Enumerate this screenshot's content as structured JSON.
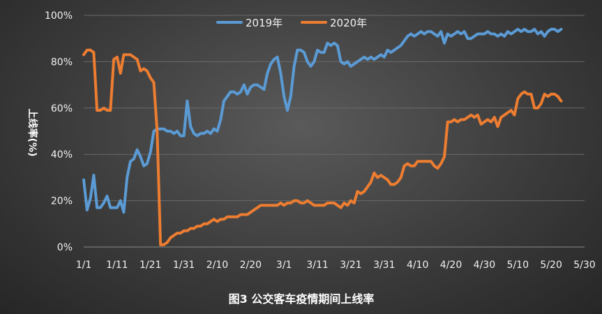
{
  "chart_data": {
    "type": "line",
    "caption": "图3  公交客车疫情期间上线率",
    "ylabel": "上线率(%)",
    "xlabel": "",
    "x_ticks": [
      "1/1",
      "1/11",
      "1/21",
      "1/31",
      "2/10",
      "2/20",
      "3/1",
      "3/11",
      "3/21",
      "3/31",
      "4/10",
      "4/20",
      "4/30",
      "5/10",
      "5/20",
      "5/30"
    ],
    "y_ticks": [
      "0%",
      "20%",
      "40%",
      "60%",
      "80%",
      "100%"
    ],
    "ylim": [
      0,
      100
    ],
    "x_range_days": [
      0,
      150
    ],
    "grid": "horizontal",
    "legend_position": "top",
    "series": [
      {
        "name": "2019年",
        "color": "#5b9bd5",
        "points": [
          [
            0,
            29
          ],
          [
            1,
            16
          ],
          [
            2,
            21
          ],
          [
            3,
            31
          ],
          [
            4,
            17
          ],
          [
            5,
            17
          ],
          [
            6,
            19
          ],
          [
            7,
            22
          ],
          [
            8,
            17
          ],
          [
            9,
            17
          ],
          [
            10,
            17
          ],
          [
            11,
            20
          ],
          [
            12,
            15
          ],
          [
            13,
            30
          ],
          [
            14,
            37
          ],
          [
            15,
            38
          ],
          [
            16,
            42
          ],
          [
            17,
            39
          ],
          [
            18,
            35
          ],
          [
            19,
            36
          ],
          [
            20,
            41
          ],
          [
            21,
            50
          ],
          [
            22,
            51
          ],
          [
            23,
            51
          ],
          [
            24,
            51
          ],
          [
            25,
            50
          ],
          [
            26,
            50
          ],
          [
            27,
            49
          ],
          [
            28,
            50
          ],
          [
            29,
            48
          ],
          [
            30,
            48
          ],
          [
            31,
            63
          ],
          [
            32,
            52
          ],
          [
            33,
            49
          ],
          [
            34,
            48
          ],
          [
            35,
            49
          ],
          [
            36,
            49
          ],
          [
            37,
            50
          ],
          [
            38,
            49
          ],
          [
            39,
            51
          ],
          [
            40,
            50
          ],
          [
            41,
            55
          ],
          [
            42,
            63
          ],
          [
            43,
            65
          ],
          [
            44,
            67
          ],
          [
            45,
            67
          ],
          [
            46,
            66
          ],
          [
            47,
            67
          ],
          [
            48,
            70
          ],
          [
            49,
            66
          ],
          [
            50,
            69
          ],
          [
            51,
            70
          ],
          [
            52,
            70
          ],
          [
            53,
            69
          ],
          [
            54,
            68
          ],
          [
            55,
            75
          ],
          [
            56,
            79
          ],
          [
            57,
            81
          ],
          [
            58,
            82
          ],
          [
            59,
            75
          ],
          [
            60,
            65
          ],
          [
            61,
            59
          ],
          [
            62,
            65
          ],
          [
            63,
            78
          ],
          [
            64,
            85
          ],
          [
            65,
            85
          ],
          [
            66,
            84
          ],
          [
            67,
            80
          ],
          [
            68,
            78
          ],
          [
            69,
            80
          ],
          [
            70,
            85
          ],
          [
            71,
            84
          ],
          [
            72,
            84
          ],
          [
            73,
            88
          ],
          [
            74,
            87
          ],
          [
            75,
            88
          ],
          [
            76,
            87
          ],
          [
            77,
            80
          ],
          [
            78,
            79
          ],
          [
            79,
            80
          ],
          [
            80,
            78
          ],
          [
            81,
            79
          ],
          [
            82,
            80
          ],
          [
            83,
            81
          ],
          [
            84,
            82
          ],
          [
            85,
            81
          ],
          [
            86,
            82
          ],
          [
            87,
            81
          ],
          [
            88,
            82
          ],
          [
            89,
            83
          ],
          [
            90,
            82
          ],
          [
            91,
            85
          ],
          [
            92,
            84
          ],
          [
            93,
            85
          ],
          [
            94,
            86
          ],
          [
            95,
            87
          ],
          [
            96,
            89
          ],
          [
            97,
            91
          ],
          [
            98,
            92
          ],
          [
            99,
            91
          ],
          [
            100,
            92
          ],
          [
            101,
            93
          ],
          [
            102,
            92
          ],
          [
            103,
            93
          ],
          [
            104,
            93
          ],
          [
            105,
            92
          ],
          [
            106,
            91
          ],
          [
            107,
            93
          ],
          [
            108,
            88
          ],
          [
            109,
            92
          ],
          [
            110,
            91
          ],
          [
            111,
            92
          ],
          [
            112,
            93
          ],
          [
            113,
            92
          ],
          [
            114,
            93
          ],
          [
            115,
            90
          ],
          [
            116,
            90
          ],
          [
            117,
            91
          ],
          [
            118,
            92
          ],
          [
            119,
            92
          ],
          [
            120,
            92
          ],
          [
            121,
            93
          ],
          [
            122,
            92
          ],
          [
            123,
            92
          ],
          [
            124,
            91
          ],
          [
            125,
            92
          ],
          [
            126,
            91
          ],
          [
            127,
            93
          ],
          [
            128,
            92
          ],
          [
            129,
            93
          ],
          [
            130,
            94
          ],
          [
            131,
            93
          ],
          [
            132,
            94
          ],
          [
            133,
            93
          ],
          [
            134,
            93
          ],
          [
            135,
            94
          ],
          [
            136,
            92
          ],
          [
            137,
            93
          ],
          [
            138,
            91
          ],
          [
            139,
            93
          ],
          [
            140,
            94
          ],
          [
            141,
            94
          ],
          [
            142,
            93
          ],
          [
            143,
            94
          ]
        ]
      },
      {
        "name": "2020年",
        "color": "#ed7d31",
        "points": [
          [
            0,
            83
          ],
          [
            1,
            85
          ],
          [
            2,
            85
          ],
          [
            3,
            84
          ],
          [
            4,
            59
          ],
          [
            5,
            59
          ],
          [
            6,
            60
          ],
          [
            7,
            59
          ],
          [
            8,
            59
          ],
          [
            9,
            81
          ],
          [
            10,
            82
          ],
          [
            11,
            75
          ],
          [
            12,
            83
          ],
          [
            13,
            83
          ],
          [
            14,
            83
          ],
          [
            15,
            82
          ],
          [
            16,
            81
          ],
          [
            17,
            76
          ],
          [
            18,
            77
          ],
          [
            19,
            76
          ],
          [
            20,
            73
          ],
          [
            21,
            71
          ],
          [
            22,
            50
          ],
          [
            23,
            1
          ],
          [
            24,
            1
          ],
          [
            25,
            2
          ],
          [
            26,
            4
          ],
          [
            27,
            5
          ],
          [
            28,
            6
          ],
          [
            29,
            6
          ],
          [
            30,
            7
          ],
          [
            31,
            7
          ],
          [
            32,
            8
          ],
          [
            33,
            8
          ],
          [
            34,
            9
          ],
          [
            35,
            9
          ],
          [
            36,
            10
          ],
          [
            37,
            10
          ],
          [
            38,
            11
          ],
          [
            39,
            12
          ],
          [
            40,
            11
          ],
          [
            41,
            12
          ],
          [
            42,
            12
          ],
          [
            43,
            13
          ],
          [
            44,
            13
          ],
          [
            45,
            13
          ],
          [
            46,
            13
          ],
          [
            47,
            14
          ],
          [
            48,
            14
          ],
          [
            49,
            14
          ],
          [
            50,
            15
          ],
          [
            51,
            16
          ],
          [
            52,
            17
          ],
          [
            53,
            18
          ],
          [
            54,
            18
          ],
          [
            55,
            18
          ],
          [
            56,
            18
          ],
          [
            57,
            18
          ],
          [
            58,
            18
          ],
          [
            59,
            19
          ],
          [
            60,
            18
          ],
          [
            61,
            19
          ],
          [
            62,
            19
          ],
          [
            63,
            20
          ],
          [
            64,
            20
          ],
          [
            65,
            19
          ],
          [
            66,
            19
          ],
          [
            67,
            20
          ],
          [
            68,
            19
          ],
          [
            69,
            18
          ],
          [
            70,
            18
          ],
          [
            71,
            18
          ],
          [
            72,
            18
          ],
          [
            73,
            19
          ],
          [
            74,
            19
          ],
          [
            75,
            19
          ],
          [
            76,
            18
          ],
          [
            77,
            17
          ],
          [
            78,
            19
          ],
          [
            79,
            18
          ],
          [
            80,
            20
          ],
          [
            81,
            19
          ],
          [
            82,
            24
          ],
          [
            83,
            23
          ],
          [
            84,
            24
          ],
          [
            85,
            26
          ],
          [
            86,
            28
          ],
          [
            87,
            32
          ],
          [
            88,
            30
          ],
          [
            89,
            31
          ],
          [
            90,
            30
          ],
          [
            91,
            29
          ],
          [
            92,
            27
          ],
          [
            93,
            27
          ],
          [
            94,
            28
          ],
          [
            95,
            30
          ],
          [
            96,
            35
          ],
          [
            97,
            36
          ],
          [
            98,
            35
          ],
          [
            99,
            35
          ],
          [
            100,
            37
          ],
          [
            101,
            37
          ],
          [
            102,
            37
          ],
          [
            103,
            37
          ],
          [
            104,
            37
          ],
          [
            105,
            35
          ],
          [
            106,
            34
          ],
          [
            107,
            36
          ],
          [
            108,
            39
          ],
          [
            109,
            54
          ],
          [
            110,
            54
          ],
          [
            111,
            55
          ],
          [
            112,
            54
          ],
          [
            113,
            55
          ],
          [
            114,
            55
          ],
          [
            115,
            56
          ],
          [
            116,
            57
          ],
          [
            117,
            56
          ],
          [
            118,
            57
          ],
          [
            119,
            53
          ],
          [
            120,
            54
          ],
          [
            121,
            55
          ],
          [
            122,
            54
          ],
          [
            123,
            56
          ],
          [
            124,
            52
          ],
          [
            125,
            56
          ],
          [
            126,
            57
          ],
          [
            127,
            58
          ],
          [
            128,
            59
          ],
          [
            129,
            57
          ],
          [
            130,
            64
          ],
          [
            131,
            66
          ],
          [
            132,
            67
          ],
          [
            133,
            66
          ],
          [
            134,
            66
          ],
          [
            135,
            60
          ],
          [
            136,
            60
          ],
          [
            137,
            62
          ],
          [
            138,
            66
          ],
          [
            139,
            65
          ],
          [
            140,
            66
          ],
          [
            141,
            66
          ],
          [
            142,
            65
          ],
          [
            143,
            63
          ]
        ]
      }
    ]
  }
}
